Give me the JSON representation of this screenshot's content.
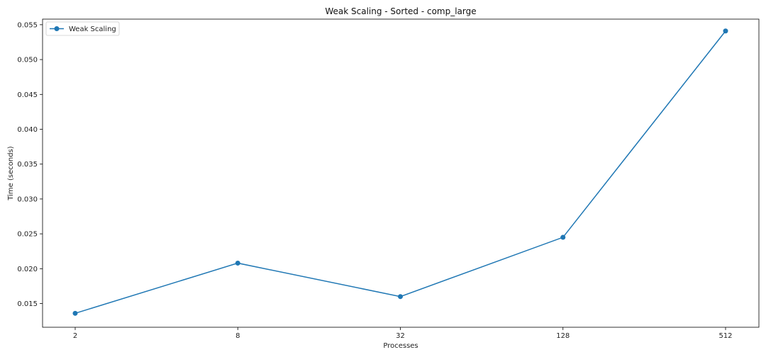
{
  "chart_data": {
    "type": "line",
    "title": "Weak Scaling - Sorted - comp_large",
    "xlabel": "Processes",
    "ylabel": "Time (seconds)",
    "categories": [
      "2",
      "8",
      "32",
      "128",
      "512"
    ],
    "series": [
      {
        "name": "Weak Scaling",
        "values": [
          0.0136,
          0.0208,
          0.016,
          0.0245,
          0.0541
        ],
        "marker": "circle"
      }
    ],
    "yticks": [
      "0.015",
      "0.020",
      "0.025",
      "0.030",
      "0.035",
      "0.040",
      "0.045",
      "0.050",
      "0.055"
    ],
    "ytick_values": [
      0.015,
      0.02,
      0.025,
      0.03,
      0.035,
      0.04,
      0.045,
      0.05,
      0.055
    ],
    "ylim": [
      0.0116,
      0.0558
    ],
    "x_scale": "log2",
    "grid": false,
    "legend_position": "top-left",
    "colors": {
      "series": "#1f77b4",
      "axes": "#000000"
    }
  }
}
